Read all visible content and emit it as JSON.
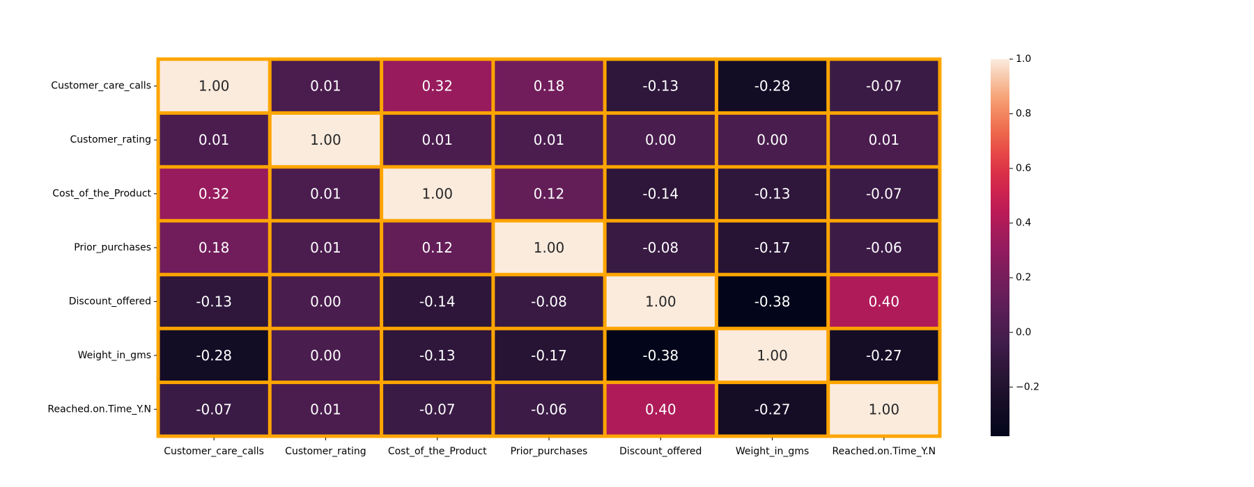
{
  "chart_data": {
    "type": "heatmap",
    "x_labels": [
      "Customer_care_calls",
      "Customer_rating",
      "Cost_of_the_Product",
      "Prior_purchases",
      "Discount_offered",
      "Weight_in_gms",
      "Reached.on.Time_Y.N"
    ],
    "y_labels": [
      "Customer_care_calls",
      "Customer_rating",
      "Cost_of_the_Product",
      "Prior_purchases",
      "Discount_offered",
      "Weight_in_gms",
      "Reached.on.Time_Y.N"
    ],
    "values": [
      [
        1.0,
        0.01,
        0.32,
        0.18,
        -0.13,
        -0.28,
        -0.07
      ],
      [
        0.01,
        1.0,
        0.01,
        0.01,
        -0.0,
        -0.0,
        0.01
      ],
      [
        0.32,
        0.01,
        1.0,
        0.12,
        -0.14,
        -0.13,
        -0.07
      ],
      [
        0.18,
        0.01,
        0.12,
        1.0,
        -0.08,
        -0.17,
        -0.06
      ],
      [
        -0.13,
        -0.0,
        -0.14,
        -0.08,
        1.0,
        -0.38,
        0.4
      ],
      [
        -0.28,
        -0.0,
        -0.13,
        -0.17,
        -0.38,
        1.0,
        -0.27
      ],
      [
        -0.07,
        0.01,
        -0.07,
        -0.06,
        0.4,
        -0.27,
        1.0
      ]
    ],
    "annotation_format": "2 decimals",
    "colormap": "rocket",
    "vmin": -0.38,
    "vmax": 1.0,
    "cell_border_color": "#ffa500",
    "colorbar": {
      "ticks": [
        1.0,
        0.8,
        0.6,
        0.4,
        0.2,
        0.0,
        -0.2
      ],
      "tick_labels": [
        "1.0",
        "0.8",
        "0.6",
        "0.4",
        "0.2",
        "0.0",
        "−0.2"
      ],
      "placement": "right"
    }
  }
}
